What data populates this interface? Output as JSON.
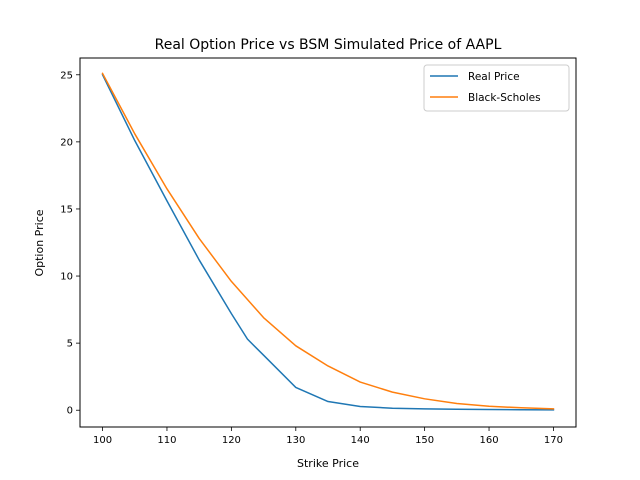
{
  "chart_data": {
    "type": "line",
    "title": "Real Option Price vs BSM Simulated Price of AAPL",
    "xlabel": "Strike Price",
    "ylabel": "Option Price",
    "xlim": [
      96.5,
      173.5
    ],
    "ylim": [
      -1.25,
      26.25
    ],
    "xticks": [
      100,
      110,
      120,
      130,
      140,
      150,
      160,
      170
    ],
    "yticks": [
      0,
      5,
      10,
      15,
      20,
      25
    ],
    "grid": false,
    "legend": "top-right",
    "series": [
      {
        "name": "Real Price",
        "color": "#1f77b4",
        "x": [
          100,
          105,
          110,
          115,
          120,
          122.5,
          125,
          130,
          135,
          140,
          145,
          150,
          155,
          160,
          165,
          170
        ],
        "y": [
          25.0,
          20.1,
          15.6,
          11.2,
          7.2,
          5.3,
          4.1,
          1.7,
          0.65,
          0.28,
          0.15,
          0.1,
          0.07,
          0.05,
          0.04,
          0.03
        ]
      },
      {
        "name": "Black-Scholes",
        "color": "#ff7f0e",
        "x": [
          100,
          105,
          110,
          115,
          120,
          125,
          130,
          135,
          140,
          145,
          150,
          155,
          160,
          165,
          170
        ],
        "y": [
          25.1,
          20.6,
          16.5,
          12.8,
          9.6,
          6.9,
          4.8,
          3.3,
          2.1,
          1.35,
          0.85,
          0.5,
          0.3,
          0.18,
          0.1
        ]
      }
    ]
  }
}
